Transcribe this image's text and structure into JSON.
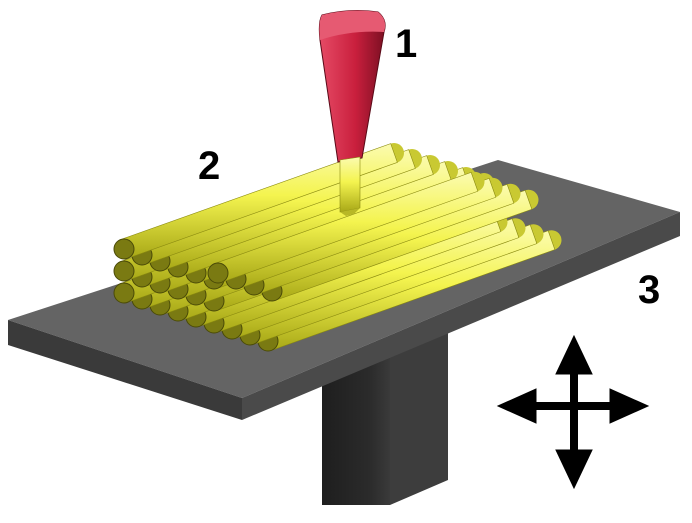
{
  "labels": {
    "nozzle": "1",
    "deposited_material": "2",
    "build_platform": "3"
  },
  "colors": {
    "nozzle": "#d42a45",
    "filament": "#f4f44f",
    "platform_top": "#646464",
    "platform_side": "#3a3a3a",
    "column": "#262626",
    "arrow": "#000000"
  },
  "icons": {
    "movement_arrows": "four-way-arrow-icon"
  }
}
